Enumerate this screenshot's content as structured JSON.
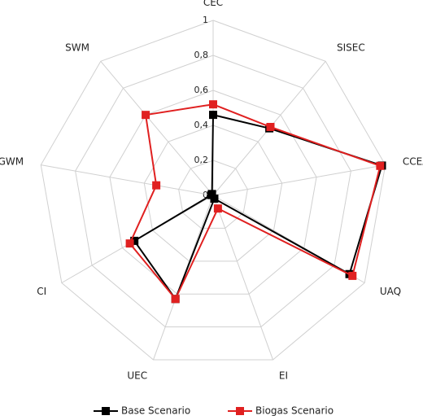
{
  "chart_data": {
    "type": "radar",
    "categories": [
      "CEC",
      "SISEC",
      "CCEA",
      "UAQ",
      "EI",
      "UEC",
      "CI",
      "GWM",
      "SWM"
    ],
    "ylim": [
      0,
      1
    ],
    "yticks": [
      0,
      {
        "value": 0.2,
        "label": "0,2"
      },
      {
        "value": 0.4,
        "label": "0,4"
      },
      {
        "value": 0.6,
        "label": "0,6"
      },
      {
        "value": 0.8,
        "label": "0,8"
      },
      1
    ],
    "series": [
      {
        "name": "Base Scenario",
        "color": "#000000",
        "values": [
          0.46,
          0.5,
          0.98,
          0.9,
          0.02,
          0.63,
          0.52,
          0.01,
          0.01
        ]
      },
      {
        "name": "Biogas Scenario",
        "color": "#e02020",
        "values": [
          0.52,
          0.51,
          0.97,
          0.92,
          0.08,
          0.63,
          0.55,
          0.33,
          0.6
        ]
      }
    ]
  }
}
